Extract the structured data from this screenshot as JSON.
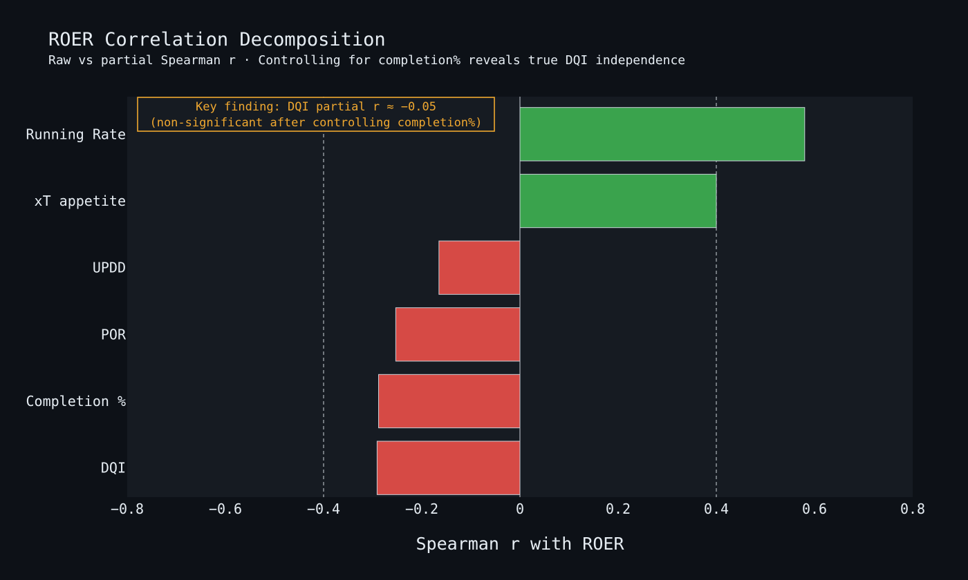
{
  "title": "ROER Correlation Decomposition",
  "subtitle": "Raw vs partial Spearman r · Controlling for completion% reveals true DQI independence",
  "colors": {
    "background": "#0d1117",
    "plot_background": "#161b22",
    "positive": "#3aa34d",
    "negative": "#d64a45",
    "annotation": "#f0a830",
    "text": "#e6edf3"
  },
  "chart_data": {
    "type": "bar",
    "orientation": "horizontal",
    "categories": [
      "Running Rate",
      "xT appetite",
      "UPDD",
      "POR",
      "Completion %",
      "DQI"
    ],
    "values": [
      0.58,
      0.4,
      -0.165,
      -0.253,
      -0.288,
      -0.291
    ],
    "xlabel": "Spearman r with ROER",
    "xlim": [
      -0.8,
      0.8
    ],
    "xticks": [
      -0.8,
      -0.6,
      -0.4,
      -0.2,
      0,
      0.2,
      0.4,
      0.6,
      0.8
    ],
    "xtick_labels": [
      "−0.8",
      "−0.6",
      "−0.4",
      "−0.2",
      "0",
      "0.2",
      "0.4",
      "0.6",
      "0.8"
    ],
    "reference_lines": [
      -0.4,
      0.4
    ],
    "grid": false,
    "annotation": {
      "line1": "Key finding: DQI partial r ≈ −0.05",
      "line2": "(non-significant after controlling completion%)"
    }
  }
}
